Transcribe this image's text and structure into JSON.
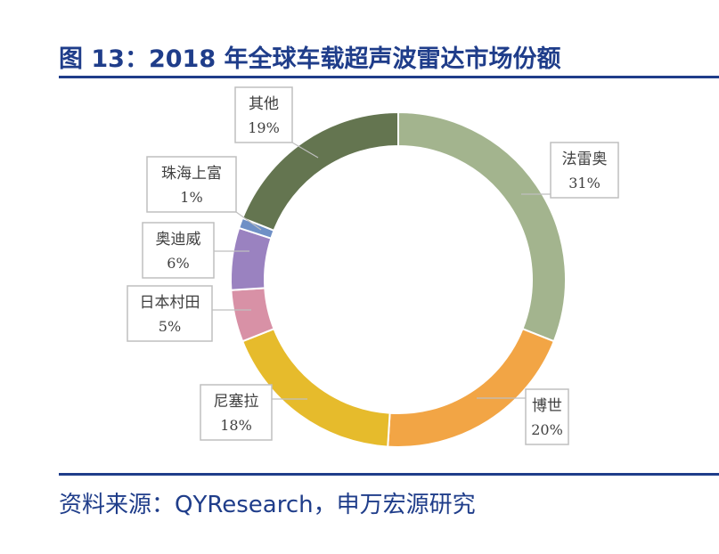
{
  "header": {
    "title": "图 13：2018 年全球车载超声波雷达市场份额"
  },
  "footer": {
    "source": "资料来源：QYResearch，申万宏源研究"
  },
  "chart_data": {
    "type": "pie",
    "donut": true,
    "title": "",
    "slices": [
      {
        "name": "法雷奥",
        "value": 31,
        "label": "31%",
        "color": "#a3b48e"
      },
      {
        "name": "博世",
        "value": 20,
        "label": "20%",
        "color": "#f2a545"
      },
      {
        "name": "尼塞拉",
        "value": 18,
        "label": "18%",
        "color": "#e6bb2c"
      },
      {
        "name": "日本村田",
        "value": 5,
        "label": "5%",
        "color": "#d891a6"
      },
      {
        "name": "奥迪威",
        "value": 6,
        "label": "6%",
        "color": "#9a82c0"
      },
      {
        "name": "珠海上富",
        "value": 1,
        "label": "1%",
        "color": "#6f90c6"
      },
      {
        "name": "其他",
        "value": 19,
        "label": "19%",
        "color": "#647550"
      }
    ]
  }
}
